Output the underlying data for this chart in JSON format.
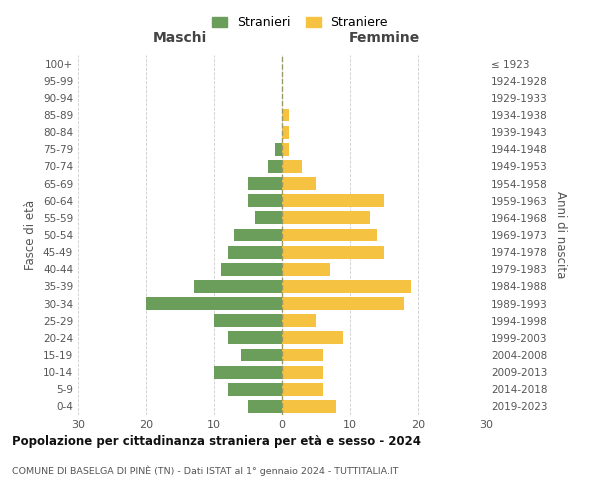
{
  "age_groups": [
    "0-4",
    "5-9",
    "10-14",
    "15-19",
    "20-24",
    "25-29",
    "30-34",
    "35-39",
    "40-44",
    "45-49",
    "50-54",
    "55-59",
    "60-64",
    "65-69",
    "70-74",
    "75-79",
    "80-84",
    "85-89",
    "90-94",
    "95-99",
    "100+"
  ],
  "birth_years": [
    "2019-2023",
    "2014-2018",
    "2009-2013",
    "2004-2008",
    "1999-2003",
    "1994-1998",
    "1989-1993",
    "1984-1988",
    "1979-1983",
    "1974-1978",
    "1969-1973",
    "1964-1968",
    "1959-1963",
    "1954-1958",
    "1949-1953",
    "1944-1948",
    "1939-1943",
    "1934-1938",
    "1929-1933",
    "1924-1928",
    "≤ 1923"
  ],
  "maschi": [
    5,
    8,
    10,
    6,
    8,
    10,
    20,
    13,
    9,
    8,
    7,
    4,
    5,
    5,
    2,
    1,
    0,
    0,
    0,
    0,
    0
  ],
  "femmine": [
    8,
    6,
    6,
    6,
    9,
    5,
    18,
    19,
    7,
    15,
    14,
    13,
    15,
    5,
    3,
    1,
    1,
    1,
    0,
    0,
    0
  ],
  "color_maschi": "#6a9e5a",
  "color_femmine": "#f5c242",
  "title": "Popolazione per cittadinanza straniera per età e sesso - 2024",
  "subtitle": "COMUNE DI BASELGA DI PINÈ (TN) - Dati ISTAT al 1° gennaio 2024 - TUTTITALIA.IT",
  "legend_maschi": "Stranieri",
  "legend_femmine": "Straniere",
  "header_left": "Maschi",
  "header_right": "Femmine",
  "ylabel_left": "Fasce di età",
  "ylabel_right": "Anni di nascita",
  "xlim": 30,
  "bg_color": "#ffffff",
  "grid_color": "#cccccc",
  "dashed_line_color": "#999966"
}
